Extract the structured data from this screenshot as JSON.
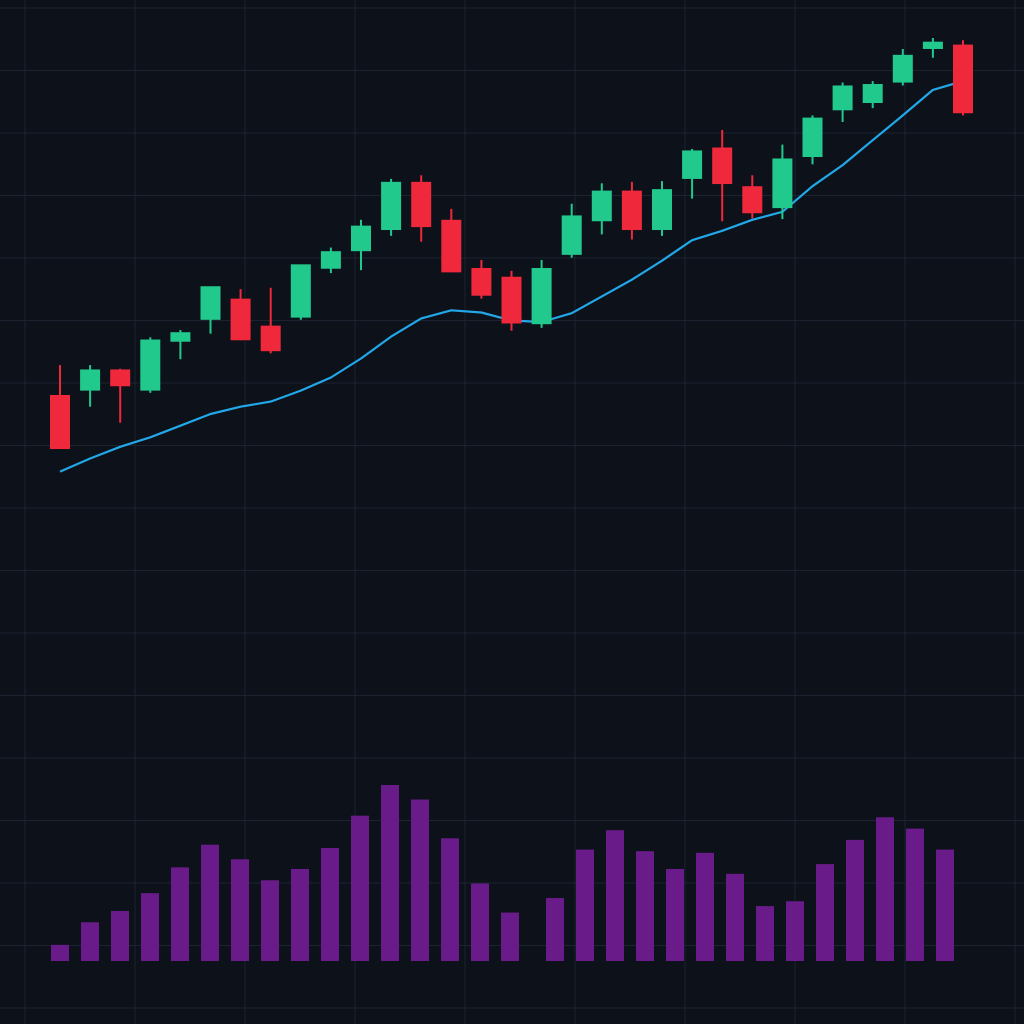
{
  "colors": {
    "background": "#0d111a",
    "grid": "#1c2330",
    "up": "#22c98d",
    "down": "#f0283c",
    "ma_line": "#22a8e8",
    "volume": "#6a1b8a"
  },
  "chart_data": [
    {
      "type": "candlestick",
      "title": "",
      "xlabel": "",
      "ylabel": "",
      "grid": true,
      "legend": "none",
      "ylim": [
        0,
        100
      ],
      "candles": [
        {
          "o": 50.0,
          "h": 54.1,
          "l": 43.0,
          "c": 42.6
        },
        {
          "o": 50.6,
          "h": 54.1,
          "l": 48.4,
          "c": 53.5
        },
        {
          "o": 53.5,
          "h": 53.6,
          "l": 46.2,
          "c": 51.2
        },
        {
          "o": 50.6,
          "h": 57.9,
          "l": 50.3,
          "c": 57.6
        },
        {
          "o": 57.3,
          "h": 58.9,
          "l": 54.9,
          "c": 58.6
        },
        {
          "o": 60.3,
          "h": 64.1,
          "l": 58.4,
          "c": 64.9
        },
        {
          "o": 63.2,
          "h": 64.5,
          "l": 57.5,
          "c": 57.5
        },
        {
          "o": 59.5,
          "h": 64.7,
          "l": 55.7,
          "c": 56.0
        },
        {
          "o": 60.6,
          "h": 67.2,
          "l": 60.3,
          "c": 67.9
        },
        {
          "o": 67.3,
          "h": 70.2,
          "l": 66.7,
          "c": 69.7
        },
        {
          "o": 69.7,
          "h": 74.0,
          "l": 67.1,
          "c": 73.2
        },
        {
          "o": 72.6,
          "h": 79.6,
          "l": 71.8,
          "c": 79.2
        },
        {
          "o": 79.2,
          "h": 80.1,
          "l": 71.0,
          "c": 73.0
        },
        {
          "o": 74.0,
          "h": 75.5,
          "l": 66.9,
          "c": 66.8
        },
        {
          "o": 67.4,
          "h": 68.5,
          "l": 63.2,
          "c": 63.6
        },
        {
          "o": 66.2,
          "h": 67.0,
          "l": 58.8,
          "c": 59.8
        },
        {
          "o": 59.7,
          "h": 68.5,
          "l": 59.2,
          "c": 67.4
        },
        {
          "o": 69.2,
          "h": 76.2,
          "l": 68.8,
          "c": 74.6
        },
        {
          "o": 73.8,
          "h": 79.0,
          "l": 72.0,
          "c": 78.0
        },
        {
          "o": 78.0,
          "h": 79.2,
          "l": 71.3,
          "c": 72.6
        },
        {
          "o": 72.6,
          "h": 79.3,
          "l": 71.8,
          "c": 78.2
        },
        {
          "o": 79.6,
          "h": 83.7,
          "l": 76.9,
          "c": 83.5
        },
        {
          "o": 83.9,
          "h": 86.3,
          "l": 73.8,
          "c": 78.9
        },
        {
          "o": 78.6,
          "h": 80.1,
          "l": 74.2,
          "c": 74.9
        },
        {
          "o": 75.6,
          "h": 84.3,
          "l": 74.1,
          "c": 82.4
        },
        {
          "o": 82.6,
          "h": 88.3,
          "l": 81.6,
          "c": 88.0
        },
        {
          "o": 89.0,
          "h": 92.8,
          "l": 87.4,
          "c": 92.4
        },
        {
          "o": 90.0,
          "h": 93.0,
          "l": 89.3,
          "c": 92.6
        },
        {
          "o": 92.8,
          "h": 97.4,
          "l": 92.4,
          "c": 96.6
        },
        {
          "o": 97.4,
          "h": 98.9,
          "l": 96.2,
          "c": 98.4
        },
        {
          "o": 98.0,
          "h": 98.6,
          "l": 88.3,
          "c": 88.6
        }
      ],
      "moving_average": [
        39.5,
        41.3,
        42.9,
        44.2,
        45.8,
        47.4,
        48.4,
        49.1,
        50.6,
        52.4,
        55.0,
        58.0,
        60.5,
        61.6,
        61.3,
        60.2,
        60.0,
        61.2,
        63.5,
        65.8,
        68.4,
        71.2,
        72.5,
        74.0,
        75.1,
        78.6,
        81.5,
        84.9,
        88.3,
        91.8,
        93.0
      ],
      "volume": [
        1.0,
        2.4,
        3.1,
        4.2,
        5.8,
        7.2,
        6.3,
        5.0,
        5.7,
        7.0,
        9.0,
        10.9,
        10.0,
        7.6,
        4.8,
        3.0,
        3.9,
        6.9,
        8.1,
        6.8,
        5.7,
        6.7,
        5.4,
        3.4,
        3.7,
        6.0,
        7.5,
        8.9,
        8.2,
        6.9
      ],
      "volume_xindex": [
        0,
        1,
        2,
        3,
        4,
        5,
        6,
        7,
        8,
        9,
        10,
        11,
        12,
        13,
        14,
        15,
        16,
        17,
        18,
        19,
        20,
        21,
        22,
        23,
        24,
        25,
        26,
        27,
        28,
        29
      ]
    }
  ]
}
